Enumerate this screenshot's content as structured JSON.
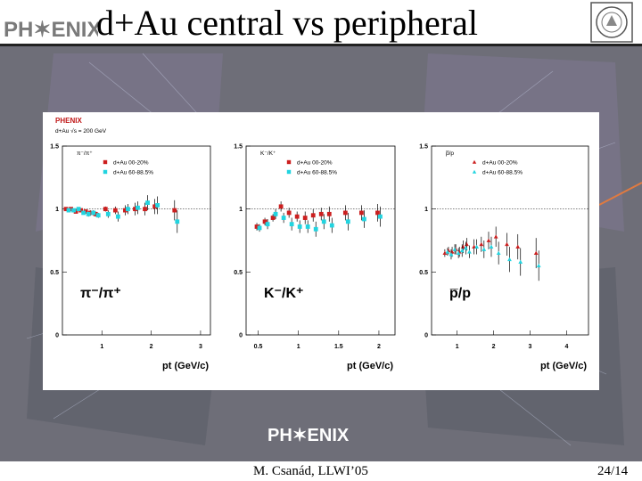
{
  "slide": {
    "title": "d+Au central vs peripheral",
    "logo_text": "PH✶ENIX",
    "author": "M. Csanád, LLWI’05",
    "page": "24/14"
  },
  "colors": {
    "central": "#cc1f1f",
    "peripheral": "#22d4e0"
  },
  "chart_header": {
    "experiment": "PHENIX",
    "system": "d+Au  √s = 200 GeV"
  },
  "chart_data": [
    {
      "type": "scatter",
      "ylabel": "π⁻/π⁺",
      "big_label": "π⁻/π⁺",
      "xlabel": "pt (GeV/c)",
      "xlim": [
        0.2,
        3.2
      ],
      "ylim": [
        0,
        1.5
      ],
      "xticks": [
        1,
        2,
        3
      ],
      "yticks": [
        0,
        0.5,
        1,
        1.5
      ],
      "legend_marker": "square",
      "series": [
        {
          "name": "d+Au  00-20%",
          "x": [
            0.3,
            0.4,
            0.5,
            0.6,
            0.7,
            0.8,
            0.9,
            1.1,
            1.3,
            1.5,
            1.7,
            1.9,
            2.1,
            2.5
          ],
          "y": [
            1.0,
            1.0,
            0.98,
            0.99,
            0.98,
            0.97,
            0.96,
            1.0,
            0.99,
            0.99,
            1.0,
            1.0,
            1.02,
            0.99
          ],
          "err": [
            0.01,
            0.01,
            0.01,
            0.01,
            0.01,
            0.02,
            0.02,
            0.02,
            0.03,
            0.04,
            0.05,
            0.05,
            0.06,
            0.08
          ]
        },
        {
          "name": "d+Au  60-88.5%",
          "x": [
            0.3,
            0.4,
            0.5,
            0.6,
            0.7,
            0.8,
            0.9,
            1.1,
            1.3,
            1.5,
            1.7,
            1.9,
            2.1,
            2.5
          ],
          "y": [
            0.99,
            0.99,
            1.0,
            0.97,
            0.96,
            0.97,
            0.95,
            0.96,
            0.94,
            1.0,
            1.01,
            1.05,
            1.03,
            0.9
          ],
          "err": [
            0.01,
            0.01,
            0.01,
            0.01,
            0.02,
            0.02,
            0.02,
            0.03,
            0.04,
            0.04,
            0.05,
            0.06,
            0.07,
            0.09
          ]
        }
      ]
    },
    {
      "type": "scatter",
      "ylabel": "K⁻/K⁺",
      "big_label": "K⁻/K⁺",
      "xlabel": "pt (GeV/c)",
      "xlim": [
        0.35,
        2.2
      ],
      "ylim": [
        0,
        1.5
      ],
      "xticks": [
        0.5,
        1,
        1.5,
        2
      ],
      "yticks": [
        0,
        0.5,
        1,
        1.5
      ],
      "legend_marker": "square",
      "series": [
        {
          "name": "d+Au  00-20%",
          "x": [
            0.5,
            0.6,
            0.7,
            0.8,
            0.9,
            1.0,
            1.1,
            1.2,
            1.3,
            1.4,
            1.6,
            1.8,
            2.0
          ],
          "y": [
            0.86,
            0.9,
            0.93,
            1.02,
            0.97,
            0.94,
            0.93,
            0.95,
            0.96,
            0.96,
            0.97,
            0.97,
            0.97
          ],
          "err": [
            0.03,
            0.03,
            0.03,
            0.04,
            0.04,
            0.04,
            0.05,
            0.05,
            0.05,
            0.06,
            0.06,
            0.06,
            0.07
          ]
        },
        {
          "name": "d+Au  60-88.5%",
          "x": [
            0.5,
            0.6,
            0.7,
            0.8,
            0.9,
            1.0,
            1.1,
            1.2,
            1.3,
            1.4,
            1.6,
            1.8,
            2.0
          ],
          "y": [
            0.85,
            0.88,
            0.96,
            0.93,
            0.88,
            0.86,
            0.86,
            0.84,
            0.9,
            0.87,
            0.9,
            0.92,
            0.94
          ],
          "err": [
            0.03,
            0.04,
            0.04,
            0.04,
            0.05,
            0.05,
            0.05,
            0.06,
            0.06,
            0.06,
            0.07,
            0.07,
            0.08
          ]
        }
      ]
    },
    {
      "type": "scatter",
      "ylabel": "p̅/p",
      "big_label": "p̅/p",
      "xlabel": "pt (GeV/c)",
      "xlim": [
        0.3,
        4.6
      ],
      "ylim": [
        0,
        1.5
      ],
      "xticks": [
        1,
        2,
        3,
        4
      ],
      "yticks": [
        0,
        0.5,
        1,
        1.5
      ],
      "legend_marker": "triangle",
      "series": [
        {
          "name": "d+Au  00-20%",
          "x": [
            0.7,
            0.8,
            0.9,
            1.0,
            1.1,
            1.2,
            1.3,
            1.5,
            1.7,
            1.9,
            2.1,
            2.4,
            2.7,
            3.2
          ],
          "y": [
            0.65,
            0.67,
            0.66,
            0.68,
            0.66,
            0.7,
            0.72,
            0.7,
            0.72,
            0.75,
            0.78,
            0.72,
            0.7,
            0.65
          ],
          "err": [
            0.03,
            0.03,
            0.04,
            0.04,
            0.04,
            0.05,
            0.05,
            0.06,
            0.06,
            0.07,
            0.08,
            0.09,
            0.1,
            0.12
          ]
        },
        {
          "name": "d+Au  60-88.5%",
          "x": [
            0.7,
            0.8,
            0.9,
            1.0,
            1.1,
            1.2,
            1.3,
            1.5,
            1.7,
            1.9,
            2.1,
            2.4,
            2.7,
            3.2
          ],
          "y": [
            0.66,
            0.64,
            0.68,
            0.65,
            0.67,
            0.69,
            0.66,
            0.7,
            0.68,
            0.7,
            0.65,
            0.6,
            0.58,
            0.55
          ],
          "err": [
            0.03,
            0.04,
            0.04,
            0.04,
            0.05,
            0.05,
            0.05,
            0.06,
            0.07,
            0.08,
            0.09,
            0.1,
            0.11,
            0.12
          ]
        }
      ]
    }
  ]
}
